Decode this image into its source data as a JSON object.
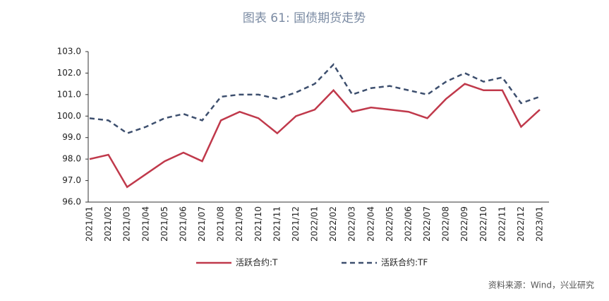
{
  "chart_data": {
    "type": "line",
    "title": "图表 61: 国债期货走势",
    "source": "资料来源：Wind，兴业研究",
    "x": [
      "2021/01",
      "2021/02",
      "2021/03",
      "2021/04",
      "2021/05",
      "2021/06",
      "2021/07",
      "2021/08",
      "2021/09",
      "2021/10",
      "2021/11",
      "2021/12",
      "2022/01",
      "2022/02",
      "2022/03",
      "2022/04",
      "2022/05",
      "2022/06",
      "2022/07",
      "2022/08",
      "2022/09",
      "2022/10",
      "2022/11",
      "2022/12",
      "2023/01"
    ],
    "series": [
      {
        "name": "活跃合约:T",
        "color": "#c0394b",
        "line_style": "solid",
        "values": [
          98.0,
          98.2,
          96.7,
          97.3,
          97.9,
          98.3,
          97.9,
          99.8,
          100.2,
          99.9,
          99.2,
          100.0,
          100.3,
          101.2,
          100.2,
          100.4,
          100.3,
          100.2,
          99.9,
          100.8,
          101.5,
          101.2,
          101.2,
          99.5,
          100.3
        ]
      },
      {
        "name": "活跃合约:TF",
        "color": "#3d4f6e",
        "line_style": "dashed",
        "values": [
          99.9,
          99.8,
          99.2,
          99.5,
          99.9,
          100.1,
          99.8,
          100.9,
          101.0,
          101.0,
          100.8,
          101.1,
          101.5,
          102.4,
          101.0,
          101.3,
          101.4,
          101.2,
          101.0,
          101.6,
          102.0,
          101.6,
          101.8,
          100.6,
          100.9
        ]
      }
    ],
    "ylim": [
      96,
      103
    ],
    "yticks": [
      {
        "value": 96,
        "label": "96.0"
      },
      {
        "value": 97,
        "label": "97.0"
      },
      {
        "value": 98,
        "label": "98.0"
      },
      {
        "value": 99,
        "label": "99.0"
      },
      {
        "value": 100,
        "label": "100.0"
      },
      {
        "value": 101,
        "label": "101.0"
      },
      {
        "value": 102,
        "label": "102.0"
      },
      {
        "value": 103,
        "label": "103.0"
      }
    ],
    "legend": "bottom"
  }
}
